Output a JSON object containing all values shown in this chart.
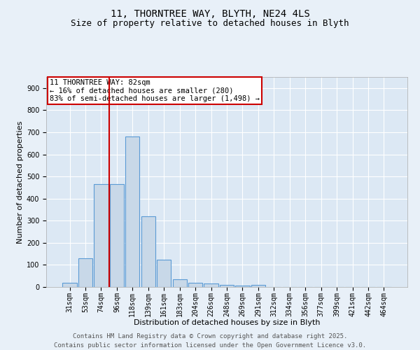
{
  "title_line1": "11, THORNTREE WAY, BLYTH, NE24 4LS",
  "title_line2": "Size of property relative to detached houses in Blyth",
  "bar_labels": [
    "31sqm",
    "53sqm",
    "74sqm",
    "96sqm",
    "118sqm",
    "139sqm",
    "161sqm",
    "183sqm",
    "204sqm",
    "226sqm",
    "248sqm",
    "269sqm",
    "291sqm",
    "312sqm",
    "334sqm",
    "356sqm",
    "377sqm",
    "399sqm",
    "421sqm",
    "442sqm",
    "464sqm"
  ],
  "bar_values": [
    20,
    130,
    465,
    465,
    680,
    320,
    122,
    35,
    18,
    15,
    10,
    5,
    10,
    0,
    0,
    0,
    0,
    0,
    0,
    0,
    0
  ],
  "bar_color": "#c8d8e8",
  "bar_edge_color": "#5b9bd5",
  "property_line_color": "#cc0000",
  "property_line_x": 2.5,
  "xlabel": "Distribution of detached houses by size in Blyth",
  "ylabel": "Number of detached properties",
  "ylim": [
    0,
    950
  ],
  "yticks": [
    0,
    100,
    200,
    300,
    400,
    500,
    600,
    700,
    800,
    900
  ],
  "annotation_title": "11 THORNTREE WAY: 82sqm",
  "annotation_line1": "← 16% of detached houses are smaller (280)",
  "annotation_line2": "83% of semi-detached houses are larger (1,498) →",
  "annotation_box_color": "#ffffff",
  "annotation_box_edge": "#cc0000",
  "footer_line1": "Contains HM Land Registry data © Crown copyright and database right 2025.",
  "footer_line2": "Contains public sector information licensed under the Open Government Licence v3.0.",
  "background_color": "#e8f0f8",
  "plot_bg_color": "#dce8f4",
  "grid_color": "#ffffff",
  "title_fontsize": 10,
  "subtitle_fontsize": 9,
  "axis_label_fontsize": 8,
  "tick_fontsize": 7,
  "annotation_fontsize": 7.5,
  "footer_fontsize": 6.5
}
